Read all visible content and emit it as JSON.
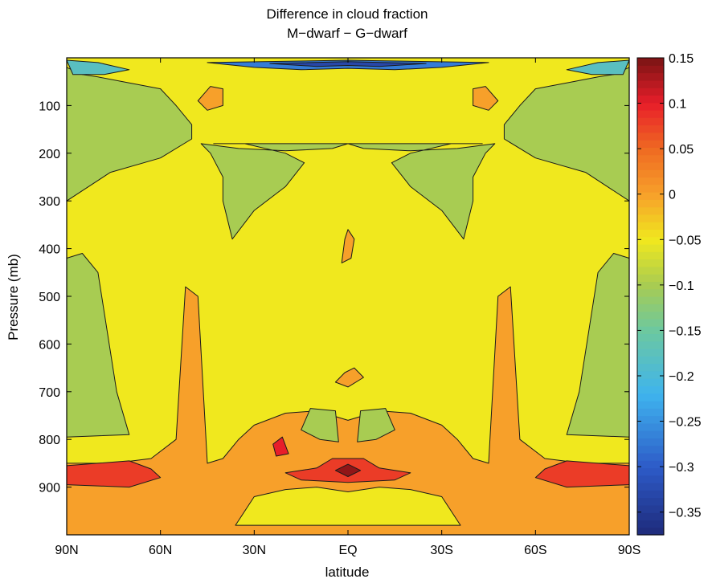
{
  "chart_data": {
    "type": "filled-contour",
    "title": "Difference in cloud fraction",
    "subtitle": "M−dwarf − G−dwarf",
    "xlabel": "latitude",
    "ylabel": "Pressure (mb)",
    "x_ticks": [
      {
        "value": 90,
        "label": "90N"
      },
      {
        "value": 60,
        "label": "60N"
      },
      {
        "value": 30,
        "label": "30N"
      },
      {
        "value": 0,
        "label": "EQ"
      },
      {
        "value": -30,
        "label": "30S"
      },
      {
        "value": -60,
        "label": "60S"
      },
      {
        "value": -90,
        "label": "90S"
      }
    ],
    "xlim": [
      90,
      -90
    ],
    "y_ticks": [
      {
        "value": 100,
        "label": "100"
      },
      {
        "value": 200,
        "label": "200"
      },
      {
        "value": 300,
        "label": "300"
      },
      {
        "value": 400,
        "label": "400"
      },
      {
        "value": 500,
        "label": "500"
      },
      {
        "value": 600,
        "label": "600"
      },
      {
        "value": 700,
        "label": "700"
      },
      {
        "value": 800,
        "label": "800"
      },
      {
        "value": 900,
        "label": "900"
      }
    ],
    "ylim": [
      0,
      1000
    ],
    "y_reversed": true,
    "colorbar": {
      "range": [
        -0.375,
        0.15
      ],
      "ticks": [
        {
          "value": 0.15,
          "label": "0.15"
        },
        {
          "value": 0.1,
          "label": "0.1"
        },
        {
          "value": 0.05,
          "label": "0.05"
        },
        {
          "value": 0,
          "label": "0"
        },
        {
          "value": -0.05,
          "label": "−0.05"
        },
        {
          "value": -0.1,
          "label": "−0.1"
        },
        {
          "value": -0.15,
          "label": "−0.15"
        },
        {
          "value": -0.2,
          "label": "−0.2"
        },
        {
          "value": -0.25,
          "label": "−0.25"
        },
        {
          "value": -0.3,
          "label": "−0.3"
        },
        {
          "value": -0.35,
          "label": "−0.35"
        }
      ],
      "color_stops": [
        {
          "value": -0.375,
          "color": "#1e2a7a"
        },
        {
          "value": -0.3,
          "color": "#2d5bc8"
        },
        {
          "value": -0.22,
          "color": "#3fb4ee"
        },
        {
          "value": -0.15,
          "color": "#6cc8a0"
        },
        {
          "value": -0.1,
          "color": "#a8cc52"
        },
        {
          "value": -0.05,
          "color": "#f0e81e"
        },
        {
          "value": 0,
          "color": "#f7a02a"
        },
        {
          "value": 0.05,
          "color": "#ef6a22"
        },
        {
          "value": 0.1,
          "color": "#e81e2a"
        },
        {
          "value": 0.15,
          "color": "#7a1414"
        }
      ]
    },
    "regions": [
      {
        "id": "band-low-south",
        "level": 0.0,
        "points": [
          [
            90,
            850
          ],
          [
            75,
            850
          ],
          [
            63,
            840
          ],
          [
            55,
            800
          ],
          [
            52,
            480
          ],
          [
            48,
            500
          ],
          [
            45,
            850
          ],
          [
            40,
            840
          ],
          [
            35,
            800
          ],
          [
            30,
            770
          ],
          [
            20,
            745
          ],
          [
            10,
            740
          ],
          [
            0,
            760
          ],
          [
            -10,
            740
          ],
          [
            -20,
            745
          ],
          [
            -30,
            770
          ],
          [
            -35,
            800
          ],
          [
            -40,
            840
          ],
          [
            -45,
            850
          ],
          [
            -48,
            500
          ],
          [
            -52,
            480
          ],
          [
            -55,
            800
          ],
          [
            -63,
            840
          ],
          [
            -75,
            850
          ],
          [
            -90,
            850
          ],
          [
            -90,
            1000
          ],
          [
            90,
            1000
          ]
        ]
      },
      {
        "id": "core-yellow",
        "level": -0.05,
        "points": [
          [
            36,
            980
          ],
          [
            -36,
            980
          ],
          [
            -30,
            920
          ],
          [
            -20,
            905
          ],
          [
            -10,
            900
          ],
          [
            0,
            910
          ],
          [
            10,
            900
          ],
          [
            20,
            905
          ],
          [
            30,
            920
          ]
        ]
      },
      {
        "id": "red-north",
        "level": 0.08,
        "points": [
          [
            90,
            855
          ],
          [
            70,
            845
          ],
          [
            63,
            862
          ],
          [
            60,
            880
          ],
          [
            70,
            900
          ],
          [
            90,
            895
          ]
        ]
      },
      {
        "id": "red-south",
        "level": 0.08,
        "points": [
          [
            -90,
            855
          ],
          [
            -70,
            845
          ],
          [
            -63,
            862
          ],
          [
            -60,
            880
          ],
          [
            -70,
            900
          ],
          [
            -90,
            895
          ]
        ]
      },
      {
        "id": "red-eq",
        "level": 0.08,
        "points": [
          [
            10,
            860
          ],
          [
            5,
            840
          ],
          [
            -5,
            840
          ],
          [
            -10,
            860
          ],
          [
            -20,
            870
          ],
          [
            -15,
            885
          ],
          [
            0,
            890
          ],
          [
            15,
            885
          ],
          [
            20,
            870
          ]
        ]
      },
      {
        "id": "eq-core",
        "level": 0.14,
        "points": [
          [
            4,
            865
          ],
          [
            0,
            852
          ],
          [
            -4,
            865
          ],
          [
            0,
            878
          ]
        ]
      },
      {
        "id": "red-dot",
        "level": 0.1,
        "points": [
          [
            24,
            810
          ],
          [
            21,
            795
          ],
          [
            19,
            830
          ],
          [
            23,
            835
          ]
        ]
      },
      {
        "id": "green-low-n",
        "level": -0.1,
        "points": [
          [
            15,
            780
          ],
          [
            12,
            735
          ],
          [
            4,
            740
          ],
          [
            3,
            805
          ],
          [
            9,
            800
          ]
        ]
      },
      {
        "id": "green-low-s",
        "level": -0.1,
        "points": [
          [
            -15,
            780
          ],
          [
            -12,
            735
          ],
          [
            -4,
            740
          ],
          [
            -3,
            805
          ],
          [
            -9,
            800
          ]
        ]
      },
      {
        "id": "orange-eq",
        "level": 0.0,
        "points": [
          [
            1,
            660
          ],
          [
            -2,
            650
          ],
          [
            -5,
            670
          ],
          [
            0,
            690
          ],
          [
            4,
            680
          ]
        ]
      },
      {
        "id": "orange-upper",
        "level": 0.0,
        "points": [
          [
            1,
            380
          ],
          [
            0,
            360
          ],
          [
            -2,
            380
          ],
          [
            -1,
            420
          ],
          [
            2,
            430
          ]
        ]
      },
      {
        "id": "orange-100-n",
        "level": 0.0,
        "points": [
          [
            44,
            60
          ],
          [
            40,
            65
          ],
          [
            40,
            100
          ],
          [
            45,
            110
          ],
          [
            48,
            90
          ]
        ]
      },
      {
        "id": "orange-100-s",
        "level": 0.0,
        "points": [
          [
            -44,
            60
          ],
          [
            -40,
            65
          ],
          [
            -40,
            100
          ],
          [
            -45,
            110
          ],
          [
            -48,
            90
          ]
        ]
      },
      {
        "id": "green-arc",
        "level": -0.1,
        "points": [
          [
            43,
            180
          ],
          [
            33,
            180
          ],
          [
            20,
            200
          ],
          [
            14,
            220
          ],
          [
            20,
            270
          ],
          [
            30,
            320
          ],
          [
            37,
            380
          ],
          [
            40,
            300
          ],
          [
            40,
            250
          ],
          [
            44,
            200
          ],
          [
            47,
            180
          ],
          [
            35,
            190
          ],
          [
            20,
            195
          ],
          [
            5,
            190
          ],
          [
            0,
            180
          ],
          [
            -5,
            190
          ],
          [
            -20,
            195
          ],
          [
            -35,
            190
          ],
          [
            -47,
            180
          ],
          [
            -44,
            200
          ],
          [
            -40,
            250
          ],
          [
            -40,
            300
          ],
          [
            -37,
            380
          ],
          [
            -30,
            320
          ],
          [
            -20,
            270
          ],
          [
            -14,
            220
          ],
          [
            -20,
            200
          ],
          [
            -33,
            180
          ],
          [
            -43,
            180
          ]
        ]
      },
      {
        "id": "green-left",
        "level": -0.1,
        "points": [
          [
            90,
            20
          ],
          [
            85,
            35
          ],
          [
            80,
            40
          ],
          [
            72,
            50
          ],
          [
            60,
            65
          ],
          [
            55,
            100
          ],
          [
            50,
            140
          ],
          [
            50,
            170
          ],
          [
            60,
            210
          ],
          [
            76,
            240
          ],
          [
            90,
            300
          ]
        ]
      },
      {
        "id": "green-right",
        "level": -0.1,
        "points": [
          [
            -90,
            20
          ],
          [
            -85,
            35
          ],
          [
            -80,
            40
          ],
          [
            -72,
            50
          ],
          [
            -60,
            65
          ],
          [
            -55,
            100
          ],
          [
            -50,
            140
          ],
          [
            -50,
            170
          ],
          [
            -60,
            210
          ],
          [
            -76,
            240
          ],
          [
            -90,
            300
          ]
        ]
      },
      {
        "id": "green-left-low",
        "level": -0.1,
        "points": [
          [
            90,
            420
          ],
          [
            85,
            410
          ],
          [
            80,
            450
          ],
          [
            74,
            700
          ],
          [
            70,
            790
          ],
          [
            90,
            795
          ]
        ]
      },
      {
        "id": "green-right-low",
        "level": -0.1,
        "points": [
          [
            -90,
            420
          ],
          [
            -85,
            410
          ],
          [
            -80,
            450
          ],
          [
            -74,
            700
          ],
          [
            -70,
            790
          ],
          [
            -90,
            795
          ]
        ]
      },
      {
        "id": "top-cyan-n",
        "level": -0.18,
        "points": [
          [
            90,
            5
          ],
          [
            80,
            10
          ],
          [
            70,
            25
          ],
          [
            78,
            35
          ],
          [
            88,
            35
          ]
        ]
      },
      {
        "id": "top-cyan-s",
        "level": -0.18,
        "points": [
          [
            -90,
            5
          ],
          [
            -80,
            10
          ],
          [
            -70,
            25
          ],
          [
            -78,
            35
          ],
          [
            -88,
            35
          ]
        ]
      },
      {
        "id": "top-blue",
        "level": -0.27,
        "points": [
          [
            45,
            10
          ],
          [
            30,
            20
          ],
          [
            15,
            25
          ],
          [
            0,
            22
          ],
          [
            -15,
            25
          ],
          [
            -30,
            20
          ],
          [
            -45,
            10
          ],
          [
            0,
            5
          ]
        ]
      },
      {
        "id": "top-deep",
        "level": -0.33,
        "points": [
          [
            25,
            12
          ],
          [
            10,
            18
          ],
          [
            0,
            16
          ],
          [
            -10,
            18
          ],
          [
            -25,
            12
          ],
          [
            0,
            8
          ]
        ]
      }
    ]
  }
}
